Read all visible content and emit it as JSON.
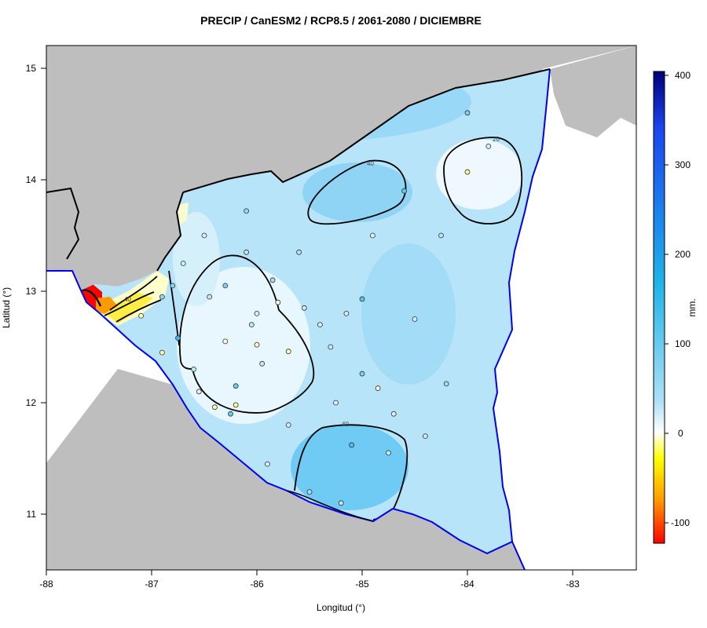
{
  "title": "PRECIP / CanESM2 / RCP8.5 / 2061-2080 / DICIEMBRE",
  "axes": {
    "xlabel": "Longitud (°)",
    "ylabel": "Latitud (°)",
    "xticks": [
      "-88",
      "-87",
      "-86",
      "-85",
      "-84",
      "-83"
    ],
    "yticks": [
      "11",
      "12",
      "13",
      "14",
      "15"
    ],
    "xlim": [
      -88,
      -82.4
    ],
    "ylim": [
      10.5,
      15.2
    ]
  },
  "colorbar": {
    "unit": "mm.",
    "ticks": [
      "400",
      "300",
      "200",
      "100",
      "0",
      "-100"
    ],
    "range": [
      -122,
      400
    ],
    "colors": {
      "neg_max": "#ff0000",
      "neg_mid": "#ff9900",
      "neg_low": "#ffff00",
      "zero": "#ffffff",
      "pos_low": "#aee0f7",
      "pos_mid": "#1fb4e8",
      "pos_high": "#1a46f0",
      "pos_max": "#00007a"
    }
  },
  "contour_labels": [
    "40",
    "20",
    "40",
    "40"
  ],
  "colors": {
    "land_outside": "#bebebe",
    "coastline": "#0000ee",
    "border": "#000000",
    "field_base": "#b8e4fa"
  },
  "stations": [
    {
      "lon": -86.2,
      "lat": 11.98,
      "val": -25
    },
    {
      "lon": -84.0,
      "lat": 14.07,
      "val": -30
    },
    {
      "lon": -85.7,
      "lat": 12.46,
      "val": -15
    },
    {
      "lon": -84.85,
      "lat": 12.13,
      "val": -10
    },
    {
      "lon": -86.3,
      "lat": 12.55,
      "val": -8
    },
    {
      "lon": -85.8,
      "lat": 12.9,
      "val": -5
    },
    {
      "lon": -87.1,
      "lat": 12.78,
      "val": -20
    },
    {
      "lon": -86.0,
      "lat": 12.52,
      "val": -12
    },
    {
      "lon": -86.4,
      "lat": 11.96,
      "val": -18
    },
    {
      "lon": -86.9,
      "lat": 12.45,
      "val": -22
    },
    {
      "lon": -85.1,
      "lat": 11.62,
      "val": 80
    },
    {
      "lon": -85.0,
      "lat": 12.93,
      "val": 75
    },
    {
      "lon": -86.75,
      "lat": 12.58,
      "val": 90
    },
    {
      "lon": -84.6,
      "lat": 13.9,
      "val": 70
    },
    {
      "lon": -86.2,
      "lat": 12.15,
      "val": 65
    },
    {
      "lon": -85.0,
      "lat": 12.26,
      "val": 60
    },
    {
      "lon": -86.3,
      "lat": 13.05,
      "val": 60
    },
    {
      "lon": -86.25,
      "lat": 11.9,
      "val": 70
    },
    {
      "lon": -85.5,
      "lat": 11.2,
      "val": 40
    },
    {
      "lon": -86.1,
      "lat": 13.72,
      "val": 50
    },
    {
      "lon": -84.2,
      "lat": 12.17,
      "val": 45
    },
    {
      "lon": -86.9,
      "lat": 12.95,
      "val": 50
    },
    {
      "lon": -84.0,
      "lat": 14.6,
      "val": 60
    },
    {
      "lon": -86.8,
      "lat": 13.05,
      "val": 55
    },
    {
      "lon": -85.6,
      "lat": 13.35,
      "val": 35
    },
    {
      "lon": -85.2,
      "lat": 11.1,
      "val": 30
    },
    {
      "lon": -86.6,
      "lat": 12.3,
      "val": 30
    },
    {
      "lon": -85.85,
      "lat": 13.1,
      "val": 40
    },
    {
      "lon": -86.0,
      "lat": 12.8,
      "val": 20
    },
    {
      "lon": -85.4,
      "lat": 12.7,
      "val": 20
    },
    {
      "lon": -84.4,
      "lat": 11.7,
      "val": 25
    },
    {
      "lon": -86.5,
      "lat": 13.5,
      "val": 20
    },
    {
      "lon": -84.7,
      "lat": 11.9,
      "val": 15
    },
    {
      "lon": -85.3,
      "lat": 12.5,
      "val": 25
    },
    {
      "lon": -86.1,
      "lat": 13.35,
      "val": 30
    },
    {
      "lon": -84.9,
      "lat": 13.5,
      "val": 15
    },
    {
      "lon": -85.9,
      "lat": 11.45,
      "val": 20
    },
    {
      "lon": -86.55,
      "lat": 12.1,
      "val": 18
    },
    {
      "lon": -84.5,
      "lat": 12.75,
      "val": 20
    },
    {
      "lon": -85.7,
      "lat": 11.8,
      "val": 22
    },
    {
      "lon": -86.45,
      "lat": 12.95,
      "val": 28
    },
    {
      "lon": -85.95,
      "lat": 12.35,
      "val": 26
    },
    {
      "lon": -85.25,
      "lat": 12.0,
      "val": 18
    },
    {
      "lon": -86.7,
      "lat": 13.25,
      "val": 22
    },
    {
      "lon": -84.25,
      "lat": 13.5,
      "val": 35
    },
    {
      "lon": -83.8,
      "lat": 14.3,
      "val": 20
    },
    {
      "lon": -85.55,
      "lat": 12.85,
      "val": 24
    },
    {
      "lon": -86.05,
      "lat": 12.7,
      "val": 30
    },
    {
      "lon": -85.15,
      "lat": 12.8,
      "val": 22
    },
    {
      "lon": -84.75,
      "lat": 11.55,
      "val": 28
    }
  ]
}
